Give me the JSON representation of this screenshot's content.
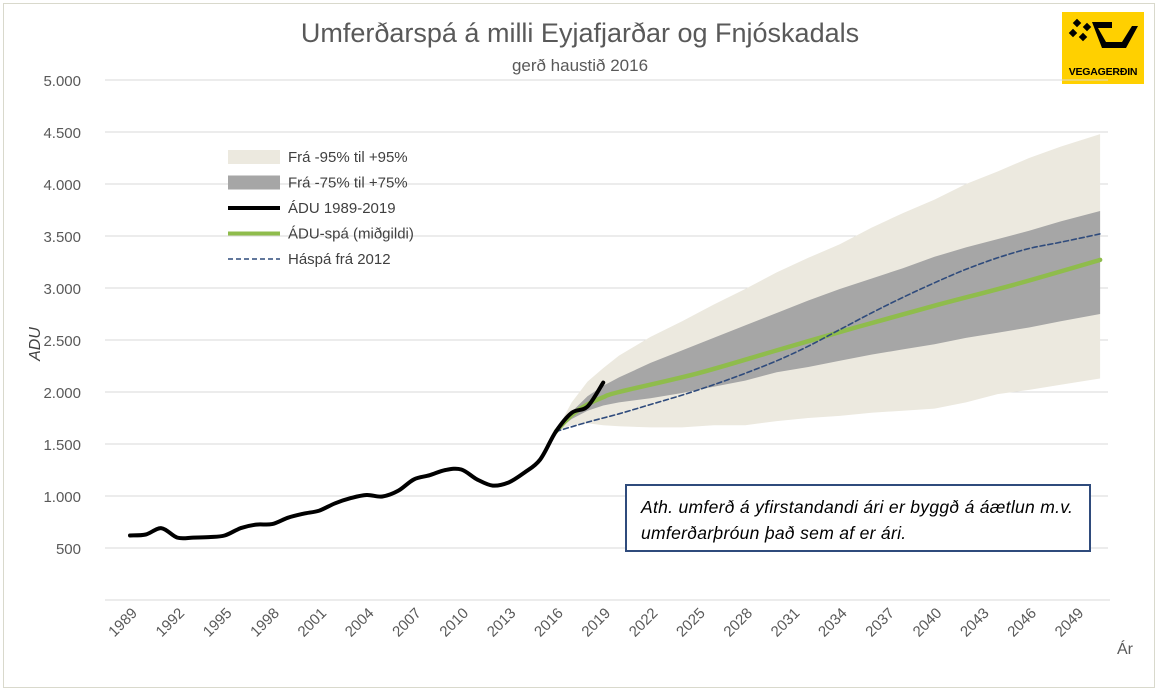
{
  "chart_data": {
    "type": "area",
    "title": "Umferðarspá á milli Eyjafjarðar og Fnjóskadals",
    "subtitle": "gerð haustið 2016",
    "ylabel": "ADU",
    "xlabel": "Ár",
    "ylim": [
      0,
      5000
    ],
    "xlim": [
      1989,
      2051
    ],
    "y_ticks": [
      "5.000",
      "4.500",
      "4.000",
      "3.500",
      "3.000",
      "2.500",
      "2.000",
      "1.500",
      "1.000",
      "500"
    ],
    "x_ticks": [
      "1989",
      "1992",
      "1995",
      "1998",
      "2001",
      "2004",
      "2007",
      "2010",
      "2013",
      "2016",
      "2019",
      "2022",
      "2025",
      "2028",
      "2031",
      "2034",
      "2037",
      "2040",
      "2043",
      "2046",
      "2049"
    ],
    "legend_position": "top-left",
    "series": [
      {
        "name": "Frá -95% til +95%",
        "kind": "band",
        "color": "#ece9df",
        "x": [
          2016,
          2017,
          2018,
          2019,
          2020,
          2022,
          2024,
          2026,
          2028,
          2030,
          2032,
          2034,
          2036,
          2038,
          2040,
          2042,
          2044,
          2046,
          2048,
          2050.5
        ],
        "lower": [
          1620,
          1680,
          1700,
          1680,
          1670,
          1660,
          1660,
          1680,
          1680,
          1720,
          1750,
          1770,
          1800,
          1820,
          1840,
          1900,
          1980,
          2020,
          2070,
          2130
        ],
        "upper": [
          1620,
          1900,
          2100,
          2230,
          2350,
          2530,
          2680,
          2840,
          2990,
          3150,
          3290,
          3420,
          3580,
          3720,
          3850,
          4000,
          4120,
          4250,
          4360,
          4480
        ]
      },
      {
        "name": "Frá -75% til +75%",
        "kind": "band",
        "color": "#a6a6a6",
        "x": [
          2016,
          2017,
          2018,
          2019,
          2020,
          2022,
          2024,
          2026,
          2028,
          2030,
          2032,
          2034,
          2036,
          2038,
          2040,
          2042,
          2044,
          2046,
          2048,
          2050.5
        ],
        "lower": [
          1620,
          1740,
          1820,
          1870,
          1900,
          1940,
          1990,
          2050,
          2110,
          2190,
          2240,
          2300,
          2360,
          2410,
          2460,
          2520,
          2570,
          2620,
          2680,
          2750
        ],
        "upper": [
          1620,
          1810,
          1960,
          2060,
          2140,
          2280,
          2400,
          2520,
          2640,
          2760,
          2880,
          2990,
          3090,
          3190,
          3300,
          3390,
          3470,
          3550,
          3640,
          3740
        ]
      },
      {
        "name": "ÁDU 1989-2019",
        "kind": "line",
        "color": "#000000",
        "x": [
          1989,
          1990,
          1991,
          1992,
          1993,
          1994,
          1995,
          1996,
          1997,
          1998,
          1999,
          2000,
          2001,
          2002,
          2003,
          2004,
          2005,
          2006,
          2007,
          2008,
          2009,
          2010,
          2011,
          2012,
          2013,
          2014,
          2015,
          2016,
          2017,
          2018,
          2019
        ],
        "values": [
          620,
          630,
          690,
          600,
          600,
          605,
          620,
          690,
          725,
          730,
          790,
          830,
          860,
          930,
          980,
          1010,
          995,
          1050,
          1160,
          1200,
          1250,
          1255,
          1160,
          1100,
          1130,
          1225,
          1350,
          1620,
          1800,
          1860,
          2090
        ]
      },
      {
        "name": "ÁDU-spá (miðgildi)",
        "kind": "line",
        "color": "#8fbc4c",
        "x": [
          2016,
          2017,
          2018,
          2019,
          2020,
          2025,
          2030,
          2035,
          2040,
          2045,
          2050.5
        ],
        "values": [
          1620,
          1780,
          1880,
          1950,
          2000,
          2180,
          2400,
          2620,
          2830,
          3030,
          3270
        ]
      },
      {
        "name": "Háspá frá 2012",
        "kind": "line",
        "dashed": true,
        "color": "#2f4b7c",
        "x": [
          2016,
          2018,
          2020,
          2022,
          2024,
          2026,
          2028,
          2030,
          2032,
          2034,
          2036,
          2038,
          2040,
          2042,
          2044,
          2046,
          2048,
          2050.5
        ],
        "values": [
          1620,
          1710,
          1790,
          1880,
          1970,
          2070,
          2180,
          2300,
          2440,
          2600,
          2760,
          2910,
          3050,
          3180,
          3290,
          3380,
          3440,
          3520
        ]
      }
    ]
  },
  "logo": {
    "text": "VEGAGERÐIN",
    "color": "#ffd000"
  },
  "note": {
    "text": "Ath. umferð á yfirstandandi ári er byggð á áætlun m.v. umferðarþróun það sem af er ári."
  }
}
